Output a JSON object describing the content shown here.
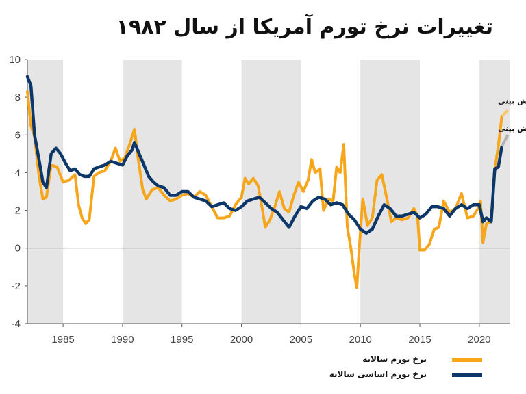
{
  "title": "تغییرات نرخ تورم آمریکا از سال ۱۹۸۲",
  "colors": {
    "headline": "#f7a51b",
    "core": "#0d3768",
    "forecast": "#b3b3b3",
    "band": "#e5e5e5"
  },
  "chart_data": {
    "type": "line",
    "title": "تغییرات نرخ تورم آمریکا از سال ۱۹۸۲",
    "xlim": [
      1982,
      2022.6
    ],
    "ylim": [
      -4,
      10
    ],
    "yticks": [
      -4,
      -2,
      0,
      2,
      4,
      6,
      8,
      10
    ],
    "xticks": [
      1985,
      1990,
      1995,
      2000,
      2005,
      2010,
      2015,
      2020
    ],
    "grid": false,
    "legend_position": "bottom-right",
    "shaded_periods": [
      [
        1982,
        1985
      ],
      [
        1990,
        1995
      ],
      [
        2000,
        2005
      ],
      [
        2010,
        2015
      ],
      [
        2020,
        2022.6
      ]
    ],
    "series": [
      {
        "name": "نرخ تورم سالانه",
        "color": "#f7a51b",
        "x": [
          1982.0,
          1982.3,
          1982.6,
          1983.0,
          1983.3,
          1983.6,
          1984.0,
          1984.5,
          1985.0,
          1985.5,
          1986.0,
          1986.3,
          1986.6,
          1986.9,
          1987.2,
          1987.6,
          1988.0,
          1988.5,
          1989.0,
          1989.4,
          1989.8,
          1990.2,
          1990.6,
          1991.0,
          1991.3,
          1991.7,
          1992.0,
          1992.5,
          1993.0,
          1993.5,
          1994.0,
          1994.5,
          1995.0,
          1995.5,
          1996.0,
          1996.5,
          1997.0,
          1997.5,
          1998.0,
          1998.5,
          1999.0,
          1999.5,
          2000.0,
          2000.3,
          2000.6,
          2001.0,
          2001.4,
          2001.8,
          2002.0,
          2002.4,
          2002.8,
          2003.2,
          2003.6,
          2004.0,
          2004.4,
          2004.8,
          2005.2,
          2005.6,
          2005.9,
          2006.2,
          2006.6,
          2006.9,
          2007.3,
          2007.7,
          2008.0,
          2008.3,
          2008.6,
          2008.9,
          2009.2,
          2009.5,
          2009.7,
          2009.9,
          2010.2,
          2010.6,
          2011.0,
          2011.4,
          2011.8,
          2012.2,
          2012.6,
          2013.0,
          2013.5,
          2014.0,
          2014.5,
          2014.8,
          2015.0,
          2015.4,
          2015.8,
          2016.2,
          2016.6,
          2017.0,
          2017.5,
          2018.0,
          2018.5,
          2019.0,
          2019.5,
          2019.9,
          2020.1,
          2020.3,
          2020.6,
          2021.0,
          2021.3,
          2021.6,
          2021.9
        ],
        "values": [
          8.3,
          6.5,
          5.9,
          3.7,
          2.6,
          2.7,
          4.4,
          4.3,
          3.5,
          3.6,
          3.9,
          2.3,
          1.6,
          1.3,
          1.5,
          3.8,
          4.0,
          4.1,
          4.6,
          5.3,
          4.6,
          4.8,
          5.5,
          6.3,
          4.8,
          3.1,
          2.6,
          3.1,
          3.2,
          2.8,
          2.5,
          2.6,
          2.8,
          2.9,
          2.7,
          3.0,
          2.8,
          2.2,
          1.6,
          1.6,
          1.7,
          2.3,
          2.7,
          3.7,
          3.4,
          3.7,
          3.3,
          1.9,
          1.1,
          1.5,
          2.2,
          3.0,
          2.1,
          1.9,
          2.8,
          3.5,
          3.0,
          3.6,
          4.7,
          4.0,
          4.2,
          2.0,
          2.6,
          2.5,
          4.3,
          4.0,
          5.5,
          1.1,
          0.0,
          -1.4,
          -2.1,
          0.0,
          2.6,
          1.2,
          1.6,
          3.6,
          3.9,
          2.7,
          1.4,
          1.6,
          1.5,
          1.6,
          2.1,
          1.7,
          -0.1,
          -0.1,
          0.2,
          1.0,
          1.1,
          2.5,
          1.9,
          2.1,
          2.9,
          1.6,
          1.7,
          2.1,
          2.5,
          0.3,
          1.3,
          1.4,
          4.2,
          5.4,
          7.0
        ]
      },
      {
        "name": "نرخ تورم اساسی سالانه",
        "color": "#0d3768",
        "x": [
          1982.0,
          1982.3,
          1982.6,
          1983.0,
          1983.3,
          1983.6,
          1984.0,
          1984.4,
          1984.8,
          1985.2,
          1985.6,
          1986.0,
          1986.4,
          1986.8,
          1987.2,
          1987.6,
          1988.0,
          1988.5,
          1989.0,
          1989.5,
          1990.0,
          1990.4,
          1990.8,
          1991.0,
          1991.4,
          1991.8,
          1992.2,
          1992.6,
          1993.0,
          1993.5,
          1994.0,
          1994.5,
          1995.0,
          1995.5,
          1996.0,
          1996.5,
          1997.0,
          1997.5,
          1998.0,
          1998.5,
          1999.0,
          1999.5,
          2000.0,
          2000.5,
          2001.0,
          2001.5,
          2002.0,
          2002.5,
          2003.0,
          2003.5,
          2004.0,
          2004.5,
          2005.0,
          2005.5,
          2006.0,
          2006.5,
          2007.0,
          2007.5,
          2008.0,
          2008.5,
          2009.0,
          2009.5,
          2010.0,
          2010.5,
          2011.0,
          2011.5,
          2012.0,
          2012.5,
          2013.0,
          2013.5,
          2014.0,
          2014.5,
          2015.0,
          2015.5,
          2016.0,
          2016.5,
          2017.0,
          2017.5,
          2018.0,
          2018.5,
          2019.0,
          2019.5,
          2020.0,
          2020.3,
          2020.6,
          2021.0,
          2021.3,
          2021.6,
          2021.9
        ],
        "values": [
          9.1,
          8.6,
          6.0,
          4.6,
          3.5,
          3.2,
          5.0,
          5.3,
          5.0,
          4.5,
          4.1,
          4.2,
          3.9,
          3.8,
          3.8,
          4.2,
          4.3,
          4.4,
          4.6,
          4.5,
          4.4,
          4.9,
          5.2,
          5.6,
          5.0,
          4.4,
          3.8,
          3.5,
          3.3,
          3.2,
          2.8,
          2.8,
          3.0,
          3.0,
          2.7,
          2.6,
          2.5,
          2.2,
          2.3,
          2.4,
          2.1,
          2.0,
          2.2,
          2.5,
          2.6,
          2.7,
          2.4,
          2.1,
          1.9,
          1.5,
          1.1,
          1.7,
          2.2,
          2.1,
          2.5,
          2.7,
          2.6,
          2.3,
          2.4,
          2.3,
          1.8,
          1.5,
          1.0,
          0.8,
          1.0,
          1.7,
          2.3,
          2.1,
          1.7,
          1.7,
          1.8,
          1.9,
          1.6,
          1.8,
          2.2,
          2.2,
          2.1,
          1.7,
          2.1,
          2.3,
          2.1,
          2.3,
          2.3,
          1.4,
          1.6,
          1.4,
          4.2,
          4.3,
          5.4
        ]
      }
    ],
    "forecasts": [
      {
        "label": "پیش بینی",
        "series": "headline",
        "x": [
          2021.9,
          2022.4
        ],
        "values": [
          7.0,
          7.3
        ]
      },
      {
        "label": "پیش بینی",
        "series": "core",
        "x": [
          2021.9,
          2022.4
        ],
        "values": [
          5.4,
          6.0
        ]
      }
    ]
  }
}
